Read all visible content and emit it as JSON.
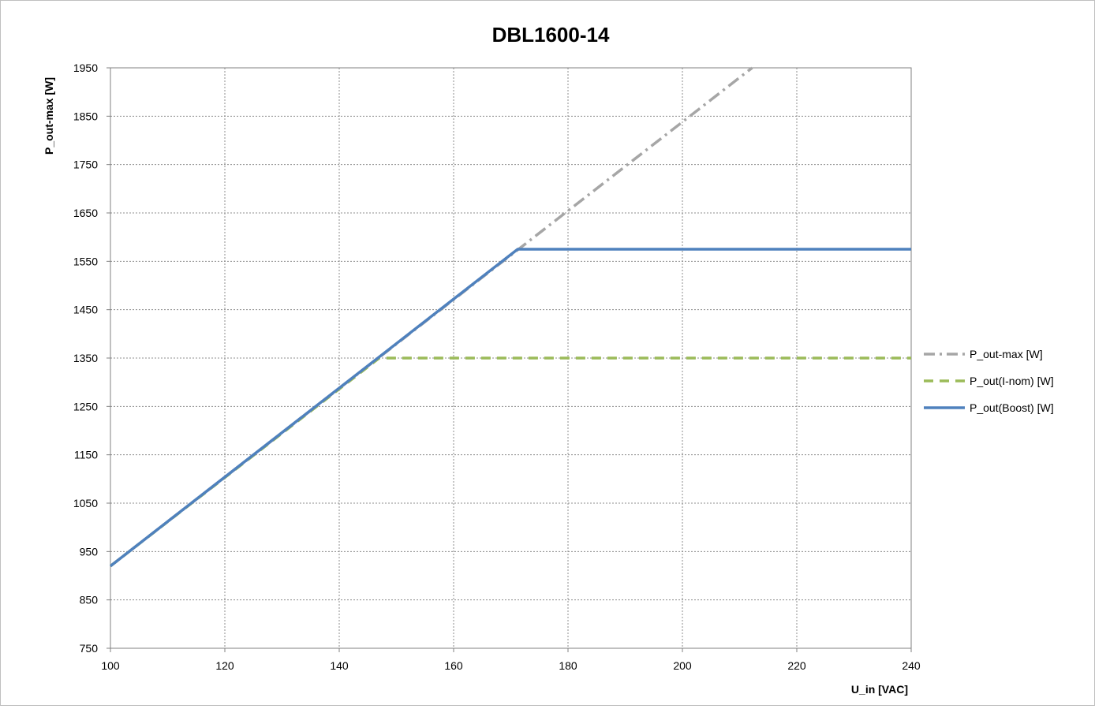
{
  "chart_data": {
    "type": "line",
    "title": "DBL1600-14",
    "xlabel": "U_in [VAC]",
    "ylabel": "P_out-max [W]",
    "xlim": [
      100,
      240
    ],
    "ylim": [
      750,
      1950
    ],
    "x_ticks": [
      "100",
      "120",
      "140",
      "160",
      "180",
      "200",
      "220",
      "240"
    ],
    "y_ticks": [
      "750",
      "850",
      "950",
      "1050",
      "1150",
      "1250",
      "1350",
      "1450",
      "1550",
      "1650",
      "1750",
      "1850",
      "1950"
    ],
    "grid": true,
    "legend_position": "right",
    "series": [
      {
        "name": "P_out-max [W]",
        "color": "#a6a6a6",
        "dash": "dash-dot",
        "x": [
          100,
          212.2
        ],
        "y": [
          920,
          1950
        ]
      },
      {
        "name": "P_out(I-nom) [W]",
        "color": "#9bbb59",
        "dash": "dashed",
        "x": [
          100,
          147,
          240
        ],
        "y": [
          920,
          1350,
          1350
        ]
      },
      {
        "name": "P_out(Boost) [W]",
        "color": "#4f81bd",
        "dash": "solid",
        "x": [
          100,
          171.2,
          240
        ],
        "y": [
          920,
          1575,
          1575
        ]
      }
    ]
  }
}
